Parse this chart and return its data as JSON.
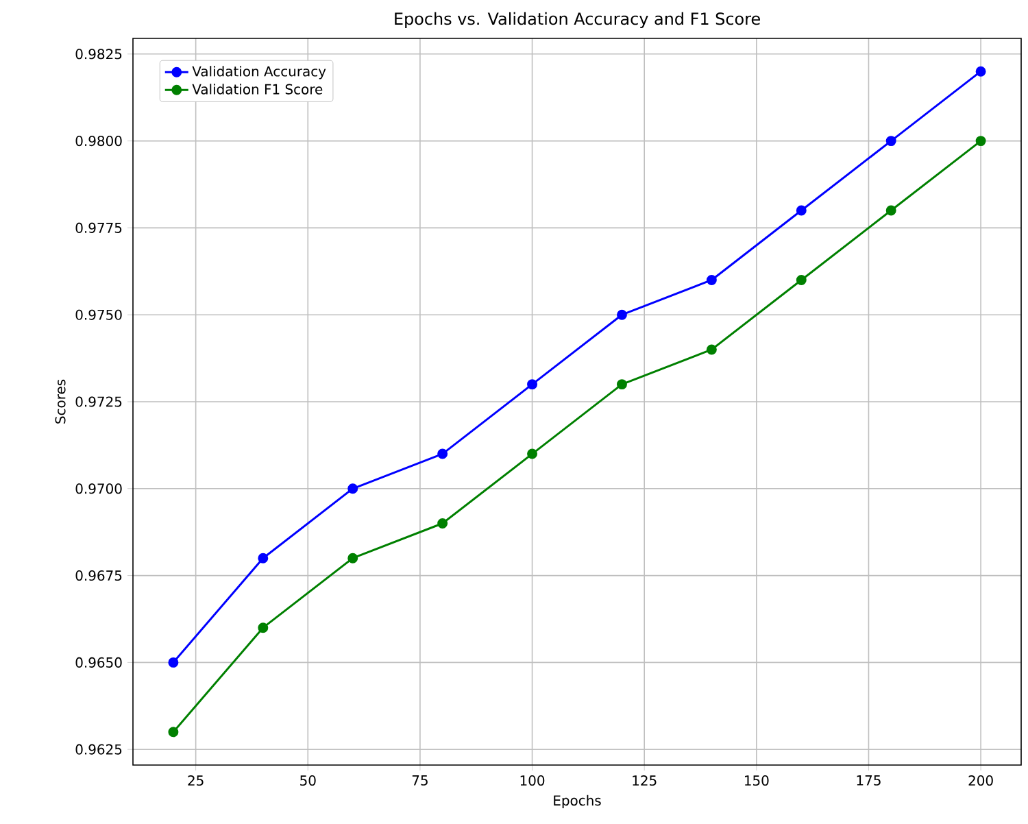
{
  "chart_data": {
    "type": "line",
    "title": "Epochs vs. Validation Accuracy and F1 Score",
    "xlabel": "Epochs",
    "ylabel": "Scores",
    "x": [
      20,
      40,
      60,
      80,
      100,
      120,
      140,
      160,
      180,
      200
    ],
    "series": [
      {
        "name": "Validation Accuracy",
        "color": "#0000ff",
        "values": [
          0.965,
          0.968,
          0.97,
          0.971,
          0.973,
          0.975,
          0.976,
          0.978,
          0.98,
          0.982
        ]
      },
      {
        "name": "Validation F1 Score",
        "color": "#008000",
        "values": [
          0.963,
          0.966,
          0.968,
          0.969,
          0.971,
          0.973,
          0.974,
          0.976,
          0.978,
          0.98
        ]
      }
    ],
    "xlim": [
      11,
      209
    ],
    "ylim": [
      0.96205,
      0.98295
    ],
    "xticks": [
      25,
      50,
      75,
      100,
      125,
      150,
      175,
      200
    ],
    "yticks": [
      0.9625,
      {
        "value": 0.965,
        "label": "0.9650"
      },
      0.9675,
      {
        "value": 0.97,
        "label": "0.9700"
      },
      0.9725,
      {
        "value": 0.975,
        "label": "0.9750"
      },
      0.9775,
      {
        "value": 0.98,
        "label": "0.9800"
      },
      0.9825
    ],
    "grid": true,
    "legend": "top left",
    "marker": "circle",
    "line_style": "solid"
  }
}
